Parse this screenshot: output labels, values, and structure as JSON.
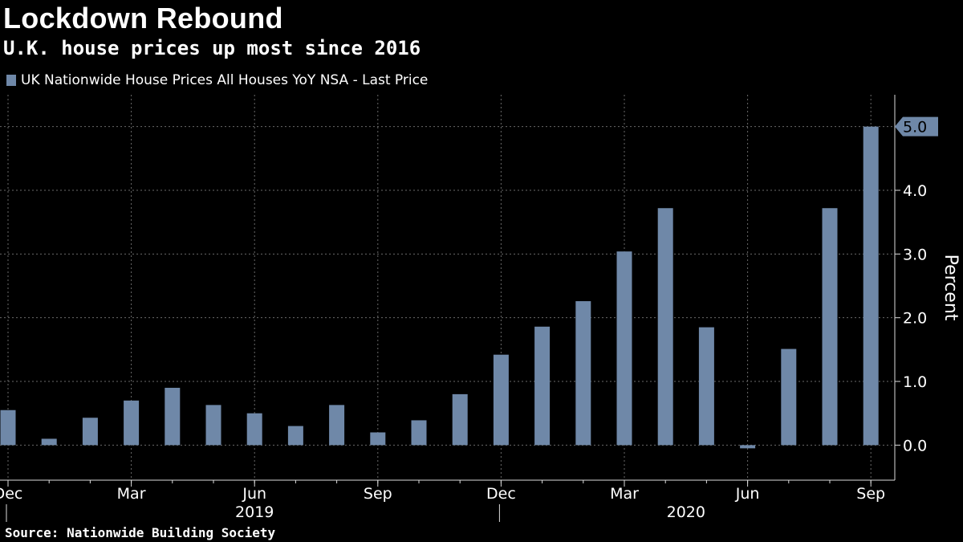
{
  "title": "Lockdown Rebound",
  "subtitle": "U.K. house prices up most since 2016",
  "source": "Source: Nationwide Building Society",
  "chart_data": {
    "type": "bar",
    "series": [
      {
        "name": "UK Nationwide House Prices All Houses YoY NSA - Last Price",
        "color": "#6f88a8",
        "values": [
          0.55,
          0.1,
          0.43,
          0.7,
          0.9,
          0.63,
          0.5,
          0.3,
          0.63,
          0.2,
          0.39,
          0.8,
          1.42,
          1.86,
          2.26,
          3.04,
          3.72,
          1.85,
          -0.05,
          1.51,
          3.72,
          5.0
        ]
      }
    ],
    "categories": [
      "Dec 2018",
      "Jan 2019",
      "Feb 2019",
      "Mar 2019",
      "Apr 2019",
      "May 2019",
      "Jun 2019",
      "Jul 2019",
      "Aug 2019",
      "Sep 2019",
      "Oct 2019",
      "Nov 2019",
      "Dec 2019",
      "Jan 2020",
      "Feb 2020",
      "Mar 2020",
      "Apr 2020",
      "May 2020",
      "Jun 2020",
      "Jul 2020",
      "Aug 2020",
      "Sep 2020"
    ],
    "x_tick_labels": [
      "Dec",
      "Mar",
      "Jun",
      "Sep",
      "Dec",
      "Mar",
      "Jun",
      "Sep"
    ],
    "x_tick_indices": [
      0,
      3,
      6,
      9,
      12,
      15,
      18,
      21
    ],
    "year_labels": [
      "2019",
      "2020"
    ],
    "year_label_indices": [
      6,
      16.5
    ],
    "year_divider_indices": [
      0,
      12
    ],
    "ylabel": "Percent",
    "ylim": [
      -0.55,
      5.5
    ],
    "y_ticks": [
      0.0,
      1.0,
      2.0,
      3.0,
      4.0,
      5.0
    ],
    "y_tick_labels": [
      "0.0",
      "1.0",
      "2.0",
      "3.0",
      "4.0",
      "5.0"
    ],
    "last_value_label": "5.0",
    "grid": true,
    "legend_position": "top-left"
  }
}
